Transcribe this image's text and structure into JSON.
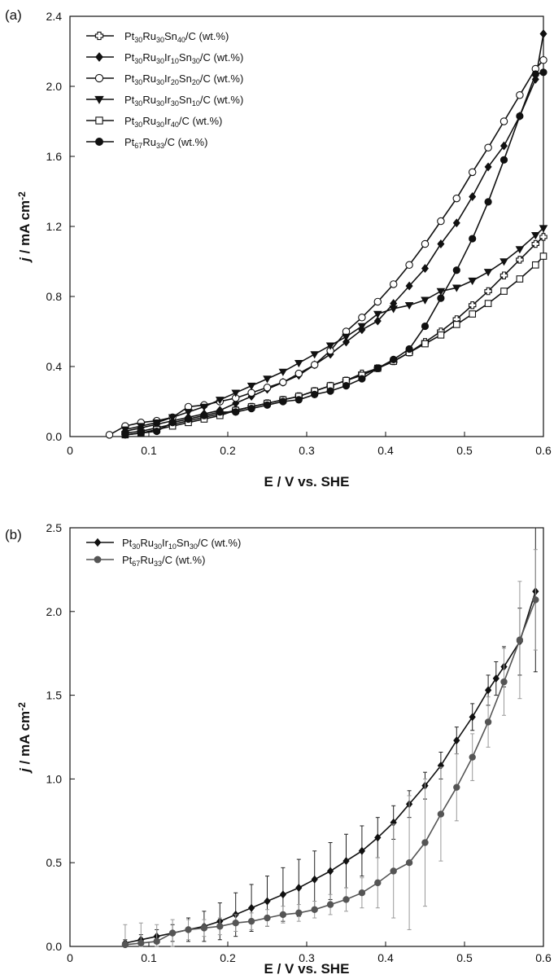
{
  "chart_data": [
    {
      "type": "line",
      "panel_label": "(a)",
      "xlabel": "E / V vs. SHE",
      "ylabel": {
        "j": "j",
        "rest": " / mA cm",
        "sup": "-2"
      },
      "xlim": [
        0,
        0.6
      ],
      "ylim": [
        0,
        2.4
      ],
      "xticks": [
        {
          "value": 0,
          "label": "0"
        },
        {
          "value": 0.1,
          "label": "0.1"
        },
        {
          "value": 0.2,
          "label": "0.2"
        },
        {
          "value": 0.3,
          "label": "0.3"
        },
        {
          "value": 0.4,
          "label": "0.4"
        },
        {
          "value": 0.5,
          "label": "0.5"
        },
        {
          "value": 0.6,
          "label": "0.6"
        }
      ],
      "yticks": [
        {
          "value": 0,
          "label": "0.0"
        },
        {
          "value": 0.4,
          "label": "0.4"
        },
        {
          "value": 0.8,
          "label": "0.8"
        },
        {
          "value": 1.2,
          "label": "1.2"
        },
        {
          "value": 1.6,
          "label": "1.6"
        },
        {
          "value": 2.0,
          "label": "2.0"
        },
        {
          "value": 2.4,
          "label": "2.4"
        }
      ],
      "grid": false,
      "legend_position": "top-left",
      "series": [
        {
          "name_parts": [
            [
              "Pt",
              ""
            ],
            [
              "30",
              "sub"
            ],
            [
              "Ru",
              ""
            ],
            [
              "30",
              "sub"
            ],
            [
              "Sn",
              ""
            ],
            [
              "40",
              "sub"
            ],
            [
              "/C (wt.%)",
              ""
            ]
          ],
          "marker": "cross",
          "color": "#111111",
          "x": [
            0.07,
            0.09,
            0.11,
            0.13,
            0.15,
            0.17,
            0.19,
            0.21,
            0.23,
            0.25,
            0.27,
            0.29,
            0.31,
            0.33,
            0.35,
            0.37,
            0.39,
            0.41,
            0.43,
            0.45,
            0.47,
            0.49,
            0.51,
            0.53,
            0.55,
            0.57,
            0.59,
            0.6
          ],
          "y": [
            0.02,
            0.03,
            0.05,
            0.07,
            0.09,
            0.11,
            0.13,
            0.15,
            0.17,
            0.19,
            0.21,
            0.23,
            0.26,
            0.29,
            0.32,
            0.36,
            0.39,
            0.43,
            0.48,
            0.54,
            0.6,
            0.67,
            0.75,
            0.83,
            0.92,
            1.01,
            1.1,
            1.14
          ]
        },
        {
          "name_parts": [
            [
              "Pt",
              ""
            ],
            [
              "30",
              "sub"
            ],
            [
              "Ru",
              ""
            ],
            [
              "30",
              "sub"
            ],
            [
              "Ir",
              ""
            ],
            [
              "10",
              "sub"
            ],
            [
              "Sn",
              ""
            ],
            [
              "30",
              "sub"
            ],
            [
              "/C (wt.%)",
              ""
            ]
          ],
          "marker": "diamond",
          "color": "#111111",
          "x": [
            0.07,
            0.09,
            0.11,
            0.13,
            0.15,
            0.17,
            0.19,
            0.21,
            0.23,
            0.25,
            0.27,
            0.29,
            0.31,
            0.33,
            0.35,
            0.37,
            0.39,
            0.41,
            0.43,
            0.45,
            0.47,
            0.49,
            0.51,
            0.53,
            0.55,
            0.57,
            0.59,
            0.6
          ],
          "y": [
            0.03,
            0.05,
            0.07,
            0.09,
            0.11,
            0.13,
            0.15,
            0.19,
            0.23,
            0.27,
            0.31,
            0.35,
            0.41,
            0.47,
            0.54,
            0.61,
            0.66,
            0.76,
            0.86,
            0.96,
            1.1,
            1.22,
            1.37,
            1.54,
            1.66,
            1.83,
            2.04,
            2.3
          ]
        },
        {
          "name_parts": [
            [
              "Pt",
              ""
            ],
            [
              "30",
              "sub"
            ],
            [
              "Ru",
              ""
            ],
            [
              "30",
              "sub"
            ],
            [
              "Ir",
              ""
            ],
            [
              "20",
              "sub"
            ],
            [
              "Sn",
              ""
            ],
            [
              "20",
              "sub"
            ],
            [
              "/C (wt.%)",
              ""
            ]
          ],
          "marker": "circle-open",
          "color": "#111111",
          "x": [
            0.05,
            0.07,
            0.09,
            0.11,
            0.13,
            0.15,
            0.17,
            0.19,
            0.21,
            0.23,
            0.25,
            0.27,
            0.29,
            0.31,
            0.33,
            0.35,
            0.37,
            0.39,
            0.41,
            0.43,
            0.45,
            0.47,
            0.49,
            0.51,
            0.53,
            0.55,
            0.57,
            0.59,
            0.6
          ],
          "y": [
            0.01,
            0.06,
            0.08,
            0.09,
            0.11,
            0.17,
            0.18,
            0.2,
            0.22,
            0.25,
            0.28,
            0.31,
            0.36,
            0.41,
            0.49,
            0.6,
            0.68,
            0.77,
            0.87,
            0.98,
            1.1,
            1.23,
            1.36,
            1.51,
            1.65,
            1.8,
            1.95,
            2.1,
            2.15
          ]
        },
        {
          "name_parts": [
            [
              "Pt",
              ""
            ],
            [
              "30",
              "sub"
            ],
            [
              "Ru",
              ""
            ],
            [
              "30",
              "sub"
            ],
            [
              "Ir",
              ""
            ],
            [
              "30",
              "sub"
            ],
            [
              "Sn",
              ""
            ],
            [
              "10",
              "sub"
            ],
            [
              "/C (wt.%)",
              ""
            ]
          ],
          "marker": "triangle-down",
          "color": "#111111",
          "x": [
            0.07,
            0.09,
            0.11,
            0.13,
            0.15,
            0.17,
            0.19,
            0.21,
            0.23,
            0.25,
            0.27,
            0.29,
            0.31,
            0.33,
            0.35,
            0.37,
            0.39,
            0.41,
            0.43,
            0.45,
            0.47,
            0.49,
            0.51,
            0.53,
            0.55,
            0.57,
            0.59,
            0.6
          ],
          "y": [
            0.04,
            0.06,
            0.08,
            0.11,
            0.14,
            0.17,
            0.21,
            0.25,
            0.29,
            0.33,
            0.37,
            0.42,
            0.47,
            0.52,
            0.57,
            0.63,
            0.7,
            0.73,
            0.75,
            0.78,
            0.83,
            0.85,
            0.89,
            0.94,
            1.0,
            1.07,
            1.15,
            1.19
          ]
        },
        {
          "name_parts": [
            [
              "Pt",
              ""
            ],
            [
              "30",
              "sub"
            ],
            [
              "Ru",
              ""
            ],
            [
              "30",
              "sub"
            ],
            [
              "Ir",
              ""
            ],
            [
              "40",
              "sub"
            ],
            [
              "/C (wt.%)",
              ""
            ]
          ],
          "marker": "square-open",
          "color": "#111111",
          "x": [
            0.07,
            0.09,
            0.11,
            0.13,
            0.15,
            0.17,
            0.19,
            0.21,
            0.23,
            0.25,
            0.27,
            0.29,
            0.31,
            0.33,
            0.35,
            0.37,
            0.39,
            0.41,
            0.43,
            0.45,
            0.47,
            0.49,
            0.51,
            0.53,
            0.55,
            0.57,
            0.59,
            0.6
          ],
          "y": [
            0.01,
            0.02,
            0.04,
            0.06,
            0.08,
            0.1,
            0.12,
            0.15,
            0.17,
            0.19,
            0.21,
            0.23,
            0.26,
            0.29,
            0.32,
            0.35,
            0.39,
            0.43,
            0.48,
            0.53,
            0.58,
            0.64,
            0.7,
            0.76,
            0.83,
            0.9,
            0.98,
            1.03
          ]
        },
        {
          "name_parts": [
            [
              "Pt",
              ""
            ],
            [
              "67",
              "sub"
            ],
            [
              "Ru",
              ""
            ],
            [
              "33",
              "sub"
            ],
            [
              "/C (wt.%)",
              ""
            ]
          ],
          "marker": "circle-filled",
          "color": "#111111",
          "x": [
            0.07,
            0.09,
            0.11,
            0.13,
            0.15,
            0.17,
            0.19,
            0.21,
            0.23,
            0.25,
            0.27,
            0.29,
            0.31,
            0.33,
            0.35,
            0.37,
            0.39,
            0.41,
            0.43,
            0.45,
            0.47,
            0.49,
            0.51,
            0.53,
            0.55,
            0.57,
            0.59,
            0.6
          ],
          "y": [
            0.01,
            0.02,
            0.03,
            0.08,
            0.1,
            0.12,
            0.14,
            0.14,
            0.16,
            0.18,
            0.2,
            0.21,
            0.24,
            0.26,
            0.29,
            0.33,
            0.39,
            0.44,
            0.5,
            0.63,
            0.79,
            0.95,
            1.13,
            1.34,
            1.58,
            1.83,
            2.07,
            2.08
          ]
        }
      ]
    },
    {
      "type": "line",
      "panel_label": "(b)",
      "xlabel": "E / V vs. SHE",
      "ylabel": {
        "j": "j",
        "rest": " / mA cm",
        "sup": "-2"
      },
      "xlim": [
        0,
        0.6
      ],
      "ylim": [
        0,
        2.5
      ],
      "xticks": [
        {
          "value": 0,
          "label": "0"
        },
        {
          "value": 0.1,
          "label": "0.1"
        },
        {
          "value": 0.2,
          "label": "0.2"
        },
        {
          "value": 0.3,
          "label": "0.3"
        },
        {
          "value": 0.4,
          "label": "0.4"
        },
        {
          "value": 0.5,
          "label": "0.5"
        },
        {
          "value": 0.6,
          "label": "0.6"
        }
      ],
      "yticks": [
        {
          "value": 0,
          "label": "0.0"
        },
        {
          "value": 0.5,
          "label": "0.5"
        },
        {
          "value": 1.0,
          "label": "1.0"
        },
        {
          "value": 1.5,
          "label": "1.5"
        },
        {
          "value": 2.0,
          "label": "2.0"
        },
        {
          "value": 2.5,
          "label": "2.5"
        }
      ],
      "grid": false,
      "legend_position": "top-left",
      "error_bars": true,
      "series": [
        {
          "name_parts": [
            [
              "Pt",
              ""
            ],
            [
              "30",
              "sub"
            ],
            [
              "Ru",
              ""
            ],
            [
              "30",
              "sub"
            ],
            [
              "Ir",
              ""
            ],
            [
              "10",
              "sub"
            ],
            [
              "Sn",
              ""
            ],
            [
              "30",
              "sub"
            ],
            [
              "/C (wt.%)",
              ""
            ]
          ],
          "marker": "diamond",
          "color": "#111111",
          "x": [
            0.07,
            0.09,
            0.11,
            0.13,
            0.15,
            0.17,
            0.19,
            0.21,
            0.23,
            0.25,
            0.27,
            0.29,
            0.31,
            0.33,
            0.35,
            0.37,
            0.39,
            0.41,
            0.43,
            0.45,
            0.47,
            0.49,
            0.51,
            0.53,
            0.54,
            0.55,
            0.57,
            0.59
          ],
          "y": [
            0.02,
            0.04,
            0.06,
            0.08,
            0.1,
            0.12,
            0.15,
            0.19,
            0.23,
            0.27,
            0.31,
            0.35,
            0.4,
            0.45,
            0.51,
            0.57,
            0.65,
            0.74,
            0.85,
            0.96,
            1.08,
            1.23,
            1.37,
            1.53,
            1.6,
            1.67,
            1.82,
            2.12
          ],
          "err": [
            0.02,
            0.03,
            0.04,
            0.05,
            0.07,
            0.09,
            0.11,
            0.13,
            0.14,
            0.15,
            0.16,
            0.17,
            0.17,
            0.17,
            0.16,
            0.15,
            0.12,
            0.1,
            0.08,
            0.08,
            0.08,
            0.08,
            0.08,
            0.09,
            0.1,
            0.12,
            0.2,
            0.48
          ]
        },
        {
          "name_parts": [
            [
              "Pt",
              ""
            ],
            [
              "67",
              "sub"
            ],
            [
              "Ru",
              ""
            ],
            [
              "33",
              "sub"
            ],
            [
              "/C (wt.%)",
              ""
            ]
          ],
          "marker": "circle-filled",
          "color": "#555555",
          "x": [
            0.07,
            0.09,
            0.11,
            0.13,
            0.15,
            0.17,
            0.19,
            0.21,
            0.23,
            0.25,
            0.27,
            0.29,
            0.31,
            0.33,
            0.35,
            0.37,
            0.39,
            0.41,
            0.43,
            0.45,
            0.47,
            0.49,
            0.51,
            0.53,
            0.55,
            0.57,
            0.59
          ],
          "y": [
            0.01,
            0.02,
            0.03,
            0.08,
            0.1,
            0.11,
            0.12,
            0.14,
            0.15,
            0.17,
            0.19,
            0.2,
            0.22,
            0.25,
            0.28,
            0.32,
            0.38,
            0.45,
            0.5,
            0.62,
            0.79,
            0.95,
            1.13,
            1.34,
            1.58,
            1.83,
            2.07
          ],
          "err": [
            0.12,
            0.12,
            0.1,
            0.08,
            0.06,
            0.05,
            0.05,
            0.05,
            0.05,
            0.05,
            0.05,
            0.05,
            0.05,
            0.06,
            0.07,
            0.09,
            0.15,
            0.28,
            0.4,
            0.38,
            0.28,
            0.2,
            0.14,
            0.15,
            0.2,
            0.35,
            0.3
          ]
        }
      ]
    }
  ]
}
